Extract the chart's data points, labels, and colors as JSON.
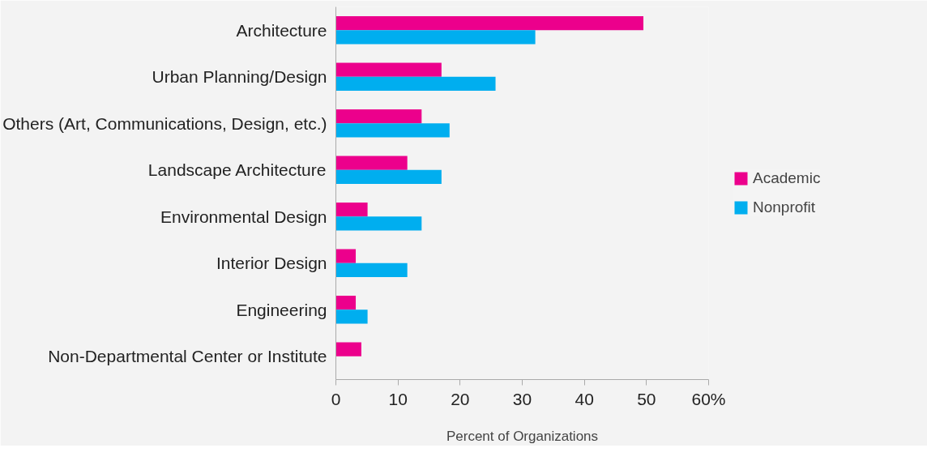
{
  "chart_data": {
    "type": "bar",
    "orientation": "horizontal",
    "xlabel": "Percent of Organizations",
    "categories": [
      "Architecture",
      "Urban Planning/Design",
      "Others (Art, Communications, Design, etc.)",
      "Landscape Architecture",
      "Environmental Design",
      "Interior Design",
      "Engineering",
      "Non-Departmental Center or Institute"
    ],
    "series": [
      {
        "name": "Academic",
        "color": "#ec008c",
        "values": [
          49.5,
          17.0,
          13.8,
          11.5,
          5.1,
          3.2,
          3.2,
          4.1
        ]
      },
      {
        "name": "Nonprofit",
        "color": "#00aeef",
        "values": [
          32.1,
          25.7,
          18.3,
          17.0,
          13.8,
          11.5,
          5.1,
          null
        ]
      }
    ],
    "xlim": [
      0,
      60
    ],
    "xticks": [
      0,
      10,
      20,
      30,
      40,
      50,
      {
        "value": 60,
        "label": "60%"
      }
    ],
    "grid": false,
    "legend": "right"
  }
}
